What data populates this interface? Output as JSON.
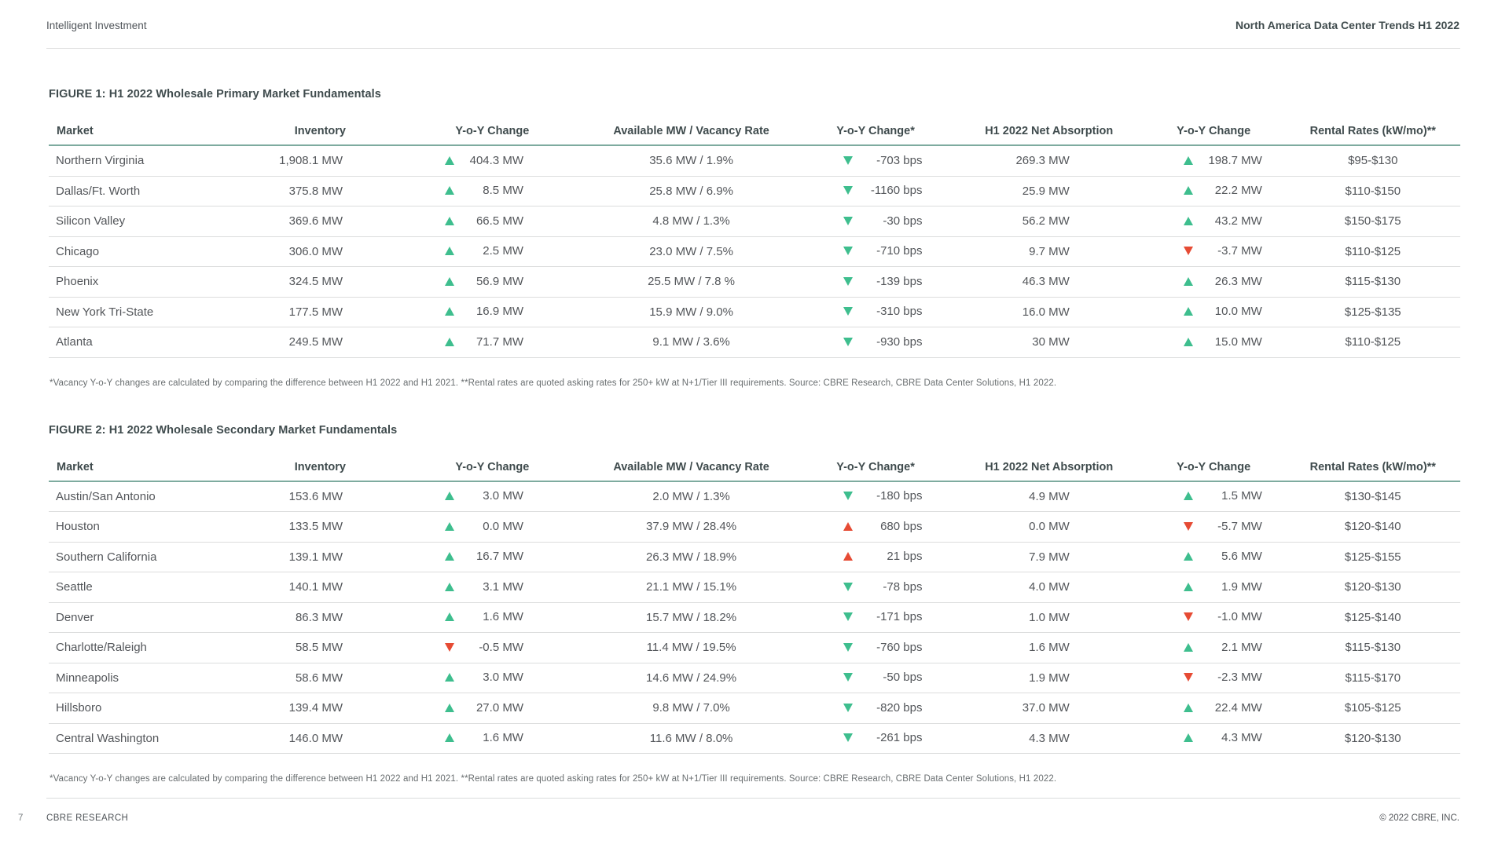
{
  "header": {
    "left": "Intelligent Investment",
    "right": "North America Data Center Trends H1 2022"
  },
  "colors": {
    "green": "#3EBE8E",
    "red": "#E64B34",
    "teal_rule": "#7EAB9F",
    "heading_text": "#3F4B4D",
    "body_text": "#53565A"
  },
  "columns": [
    "Market",
    "Inventory",
    "Y-o-Y Change",
    "Available MW / Vacancy Rate",
    "Y-o-Y Change*",
    "H1 2022 Net Absorption",
    "Y-o-Y Change",
    "Rental Rates (kW/mo)**"
  ],
  "figure1": {
    "title": "FIGURE 1: H1 2022 Wholesale Primary Market Fundamentals",
    "rows": [
      {
        "market": "Northern Virginia",
        "inventory": "1,908.1 MW",
        "inv_change": {
          "dir": "up",
          "color": "green",
          "value": "404.3 MW"
        },
        "avail": "35.6 MW / 1.9%",
        "vac_change": {
          "dir": "down",
          "color": "green",
          "value": "-703 bps"
        },
        "absorption": "269.3 MW",
        "abs_change": {
          "dir": "up",
          "color": "green",
          "value": "198.7 MW"
        },
        "rates": "$95-$130"
      },
      {
        "market": "Dallas/Ft. Worth",
        "inventory": "375.8 MW",
        "inv_change": {
          "dir": "up",
          "color": "green",
          "value": "8.5 MW"
        },
        "avail": "25.8 MW / 6.9%",
        "vac_change": {
          "dir": "down",
          "color": "green",
          "value": "-1160 bps"
        },
        "absorption": "25.9 MW",
        "abs_change": {
          "dir": "up",
          "color": "green",
          "value": "22.2 MW"
        },
        "rates": "$110-$150"
      },
      {
        "market": "Silicon Valley",
        "inventory": "369.6 MW",
        "inv_change": {
          "dir": "up",
          "color": "green",
          "value": "66.5 MW"
        },
        "avail": "4.8 MW / 1.3%",
        "vac_change": {
          "dir": "down",
          "color": "green",
          "value": "-30 bps"
        },
        "absorption": "56.2 MW",
        "abs_change": {
          "dir": "up",
          "color": "green",
          "value": "43.2 MW"
        },
        "rates": "$150-$175"
      },
      {
        "market": "Chicago",
        "inventory": "306.0 MW",
        "inv_change": {
          "dir": "up",
          "color": "green",
          "value": "2.5 MW"
        },
        "avail": "23.0 MW / 7.5%",
        "vac_change": {
          "dir": "down",
          "color": "green",
          "value": "-710 bps"
        },
        "absorption": "9.7 MW",
        "abs_change": {
          "dir": "down",
          "color": "red",
          "value": "-3.7 MW"
        },
        "rates": "$110-$125"
      },
      {
        "market": "Phoenix",
        "inventory": "324.5 MW",
        "inv_change": {
          "dir": "up",
          "color": "green",
          "value": "56.9 MW"
        },
        "avail": "25.5 MW / 7.8 %",
        "vac_change": {
          "dir": "down",
          "color": "green",
          "value": "-139 bps"
        },
        "absorption": "46.3 MW",
        "abs_change": {
          "dir": "up",
          "color": "green",
          "value": "26.3 MW"
        },
        "rates": "$115-$130"
      },
      {
        "market": "New York Tri-State",
        "inventory": "177.5 MW",
        "inv_change": {
          "dir": "up",
          "color": "green",
          "value": "16.9 MW"
        },
        "avail": "15.9 MW / 9.0%",
        "vac_change": {
          "dir": "down",
          "color": "green",
          "value": "-310 bps"
        },
        "absorption": "16.0 MW",
        "abs_change": {
          "dir": "up",
          "color": "green",
          "value": "10.0 MW"
        },
        "rates": "$125-$135"
      },
      {
        "market": "Atlanta",
        "inventory": "249.5 MW",
        "inv_change": {
          "dir": "up",
          "color": "green",
          "value": "71.7 MW"
        },
        "avail": "9.1 MW / 3.6%",
        "vac_change": {
          "dir": "down",
          "color": "green",
          "value": "-930 bps"
        },
        "absorption": "30 MW",
        "abs_change": {
          "dir": "up",
          "color": "green",
          "value": "15.0 MW"
        },
        "rates": "$110-$125"
      }
    ],
    "footnote": "*Vacancy Y-o-Y changes are calculated by comparing the difference between H1 2022 and H1 2021. **Rental rates are quoted asking rates for 250+ kW at N+1/Tier III requirements. Source: CBRE Research, CBRE Data Center Solutions, H1 2022."
  },
  "figure2": {
    "title": "FIGURE 2: H1 2022 Wholesale Secondary Market Fundamentals",
    "rows": [
      {
        "market": "Austin/San Antonio",
        "inventory": "153.6 MW",
        "inv_change": {
          "dir": "up",
          "color": "green",
          "value": "3.0 MW"
        },
        "avail": "2.0 MW / 1.3%",
        "vac_change": {
          "dir": "down",
          "color": "green",
          "value": "-180 bps"
        },
        "absorption": "4.9 MW",
        "abs_change": {
          "dir": "up",
          "color": "green",
          "value": "1.5 MW"
        },
        "rates": "$130-$145"
      },
      {
        "market": "Houston",
        "inventory": "133.5 MW",
        "inv_change": {
          "dir": "up",
          "color": "green",
          "value": "0.0 MW"
        },
        "avail": "37.9 MW / 28.4%",
        "vac_change": {
          "dir": "up",
          "color": "red",
          "value": "680 bps"
        },
        "absorption": "0.0 MW",
        "abs_change": {
          "dir": "down",
          "color": "red",
          "value": "-5.7 MW"
        },
        "rates": "$120-$140"
      },
      {
        "market": "Southern California",
        "inventory": "139.1 MW",
        "inv_change": {
          "dir": "up",
          "color": "green",
          "value": "16.7 MW"
        },
        "avail": "26.3 MW / 18.9%",
        "vac_change": {
          "dir": "up",
          "color": "red",
          "value": "21 bps"
        },
        "absorption": "7.9 MW",
        "abs_change": {
          "dir": "up",
          "color": "green",
          "value": "5.6 MW"
        },
        "rates": "$125-$155"
      },
      {
        "market": "Seattle",
        "inventory": "140.1 MW",
        "inv_change": {
          "dir": "up",
          "color": "green",
          "value": "3.1 MW"
        },
        "avail": "21.1 MW / 15.1%",
        "vac_change": {
          "dir": "down",
          "color": "green",
          "value": "-78 bps"
        },
        "absorption": "4.0 MW",
        "abs_change": {
          "dir": "up",
          "color": "green",
          "value": "1.9 MW"
        },
        "rates": "$120-$130"
      },
      {
        "market": "Denver",
        "inventory": "86.3 MW",
        "inv_change": {
          "dir": "up",
          "color": "green",
          "value": "1.6 MW"
        },
        "avail": "15.7 MW / 18.2%",
        "vac_change": {
          "dir": "down",
          "color": "green",
          "value": "-171 bps"
        },
        "absorption": "1.0 MW",
        "abs_change": {
          "dir": "down",
          "color": "red",
          "value": "-1.0 MW"
        },
        "rates": "$125-$140"
      },
      {
        "market": "Charlotte/Raleigh",
        "inventory": "58.5 MW",
        "inv_change": {
          "dir": "down",
          "color": "red",
          "value": "-0.5 MW"
        },
        "avail": "11.4 MW / 19.5%",
        "vac_change": {
          "dir": "down",
          "color": "green",
          "value": "-760 bps"
        },
        "absorption": "1.6 MW",
        "abs_change": {
          "dir": "up",
          "color": "green",
          "value": "2.1 MW"
        },
        "rates": "$115-$130"
      },
      {
        "market": "Minneapolis",
        "inventory": "58.6 MW",
        "inv_change": {
          "dir": "up",
          "color": "green",
          "value": "3.0 MW"
        },
        "avail": "14.6 MW / 24.9%",
        "vac_change": {
          "dir": "down",
          "color": "green",
          "value": "-50 bps"
        },
        "absorption": "1.9 MW",
        "abs_change": {
          "dir": "down",
          "color": "red",
          "value": "-2.3 MW"
        },
        "rates": "$115-$170"
      },
      {
        "market": "Hillsboro",
        "inventory": "139.4 MW",
        "inv_change": {
          "dir": "up",
          "color": "green",
          "value": "27.0 MW"
        },
        "avail": "9.8 MW / 7.0%",
        "vac_change": {
          "dir": "down",
          "color": "green",
          "value": "-820 bps"
        },
        "absorption": "37.0 MW",
        "abs_change": {
          "dir": "up",
          "color": "green",
          "value": "22.4 MW"
        },
        "rates": "$105-$125"
      },
      {
        "market": "Central Washington",
        "inventory": "146.0 MW",
        "inv_change": {
          "dir": "up",
          "color": "green",
          "value": "1.6 MW"
        },
        "avail": "11.6 MW / 8.0%",
        "vac_change": {
          "dir": "down",
          "color": "green",
          "value": "-261 bps"
        },
        "absorption": "4.3 MW",
        "abs_change": {
          "dir": "up",
          "color": "green",
          "value": "4.3 MW"
        },
        "rates": "$120-$130"
      }
    ],
    "footnote": "*Vacancy Y-o-Y changes are calculated by comparing the difference between H1 2022 and H1 2021. **Rental rates are quoted asking rates for 250+ kW at N+1/Tier III requirements. Source: CBRE Research, CBRE Data Center Solutions, H1 2022."
  },
  "footer": {
    "page": "7",
    "left": "CBRE RESEARCH",
    "right": "© 2022 CBRE, INC."
  }
}
